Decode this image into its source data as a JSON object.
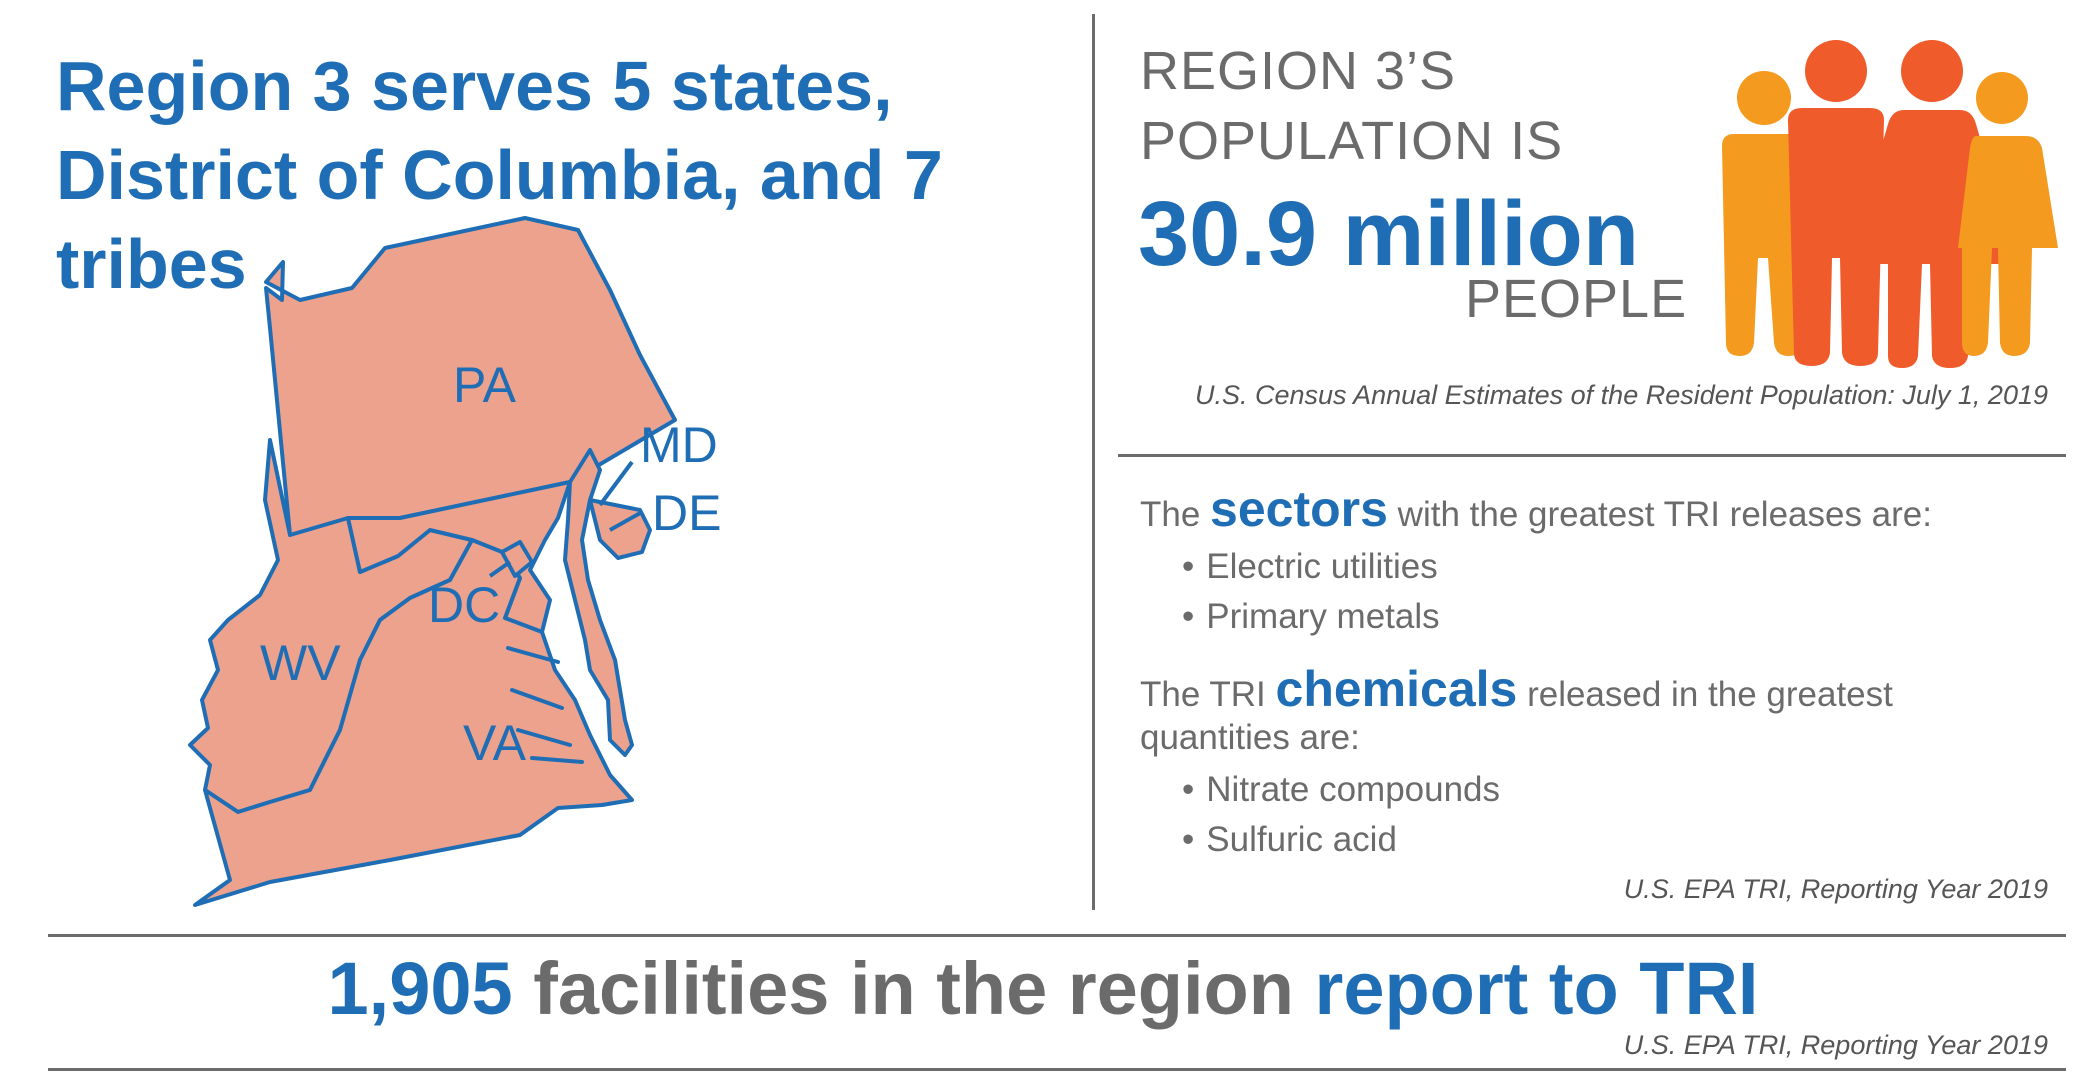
{
  "headline": "Region 3 serves 5 states, District of Columbia, and 7 tribes",
  "map": {
    "states": {
      "pa": "PA",
      "md": "MD",
      "de": "DE",
      "dc": "DC",
      "wv": "WV",
      "va": "VA"
    },
    "fill_color": "#eda28d",
    "outline_color": "#1f6eb5"
  },
  "population": {
    "line1": "REGION 3’S",
    "line2": "POPULATION IS",
    "value": "30.9 million",
    "unit": "PEOPLE",
    "icon": "people-group-icon",
    "citation": "U.S. Census Annual Estimates of the Resident Population: July 1, 2019"
  },
  "sectors": {
    "prefix": "The ",
    "emphasis": "sectors",
    "suffix": " with the greatest TRI releases are:",
    "items": [
      "Electric utilities",
      "Primary metals"
    ]
  },
  "chemicals": {
    "prefix": "The TRI ",
    "emphasis": "chemicals",
    "suffix": " released in the greatest",
    "line2": "quantities are:",
    "items": [
      "Nitrate compounds",
      "Sulfuric acid"
    ],
    "citation": "U.S. EPA TRI, Reporting Year 2019"
  },
  "facilities": {
    "count": "1,905",
    "middle": " facilities in the region ",
    "end": "report to TRI",
    "citation": "U.S. EPA TRI, Reporting Year 2019"
  },
  "colors": {
    "blue": "#1f6eb5",
    "gray": "#6b6b6b",
    "orange_light": "#f39a1f",
    "orange_dark": "#ef5b2a"
  }
}
